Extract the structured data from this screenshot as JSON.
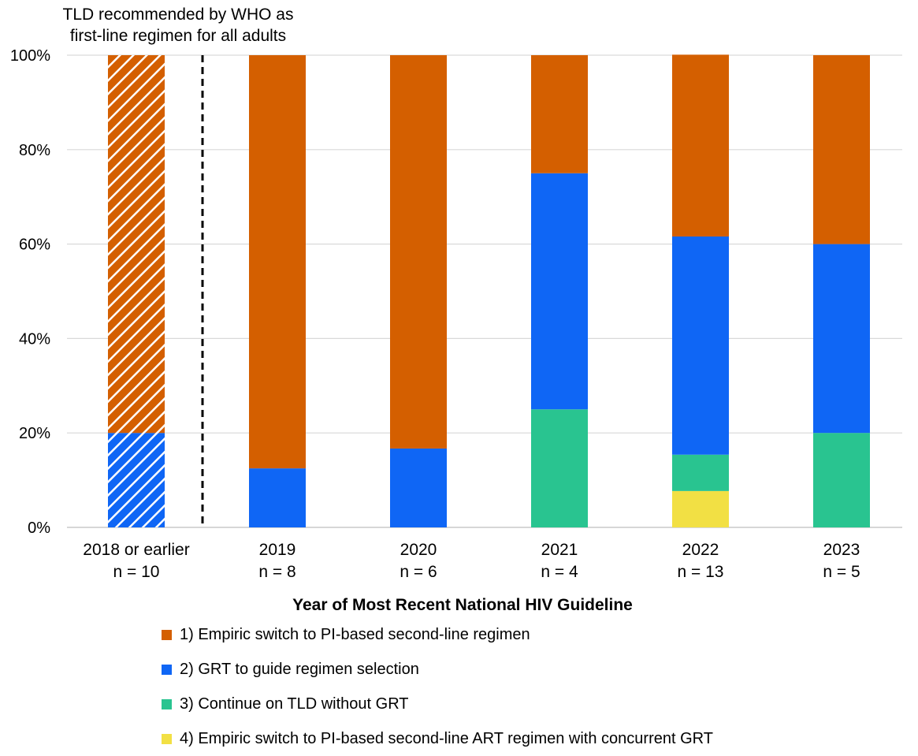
{
  "chart_data": {
    "type": "bar",
    "stacked": true,
    "percent_axis": true,
    "xlabel": "Year of Most Recent National HIV Guideline",
    "ylabel": "",
    "ylim": [
      0,
      100
    ],
    "y_ticks": [
      "0%",
      "20%",
      "40%",
      "60%",
      "80%",
      "100%"
    ],
    "grid": true,
    "categories": [
      {
        "name": "2018 or earlier",
        "n": "n = 10",
        "hatched": true
      },
      {
        "name": "2019",
        "n": "n = 8",
        "hatched": false
      },
      {
        "name": "2020",
        "n": "n = 6",
        "hatched": false
      },
      {
        "name": "2021",
        "n": "n = 4",
        "hatched": false
      },
      {
        "name": "2022",
        "n": "n = 13",
        "hatched": false
      },
      {
        "name": "2023",
        "n": "n = 5",
        "hatched": false
      }
    ],
    "series": [
      {
        "name": "4) Empiric switch to PI-based second-line ART regimen with concurrent GRT",
        "color": "#f2e044",
        "values": [
          0,
          0,
          0,
          0,
          7.7,
          0
        ]
      },
      {
        "name": "3) Continue on TLD without GRT",
        "color": "#29c490",
        "values": [
          0,
          0,
          0,
          25,
          7.7,
          20
        ]
      },
      {
        "name": "2) GRT to guide regimen selection",
        "color": "#0f66f5",
        "values": [
          20,
          12.5,
          16.7,
          50,
          46.2,
          40
        ]
      },
      {
        "name": "1) Empiric switch to PI-based second-line regimen",
        "color": "#d45f00",
        "values": [
          80,
          87.5,
          83.3,
          25,
          38.5,
          40
        ]
      }
    ],
    "legend_order": [
      3,
      2,
      1,
      0
    ],
    "legend_placement": "bottom",
    "annotation": {
      "lines": [
        "TLD recommended by WHO as",
        "first-line regimen for all adults"
      ],
      "between_categories": [
        "2018 or earlier",
        "2019"
      ],
      "line_style": "dashed"
    }
  }
}
